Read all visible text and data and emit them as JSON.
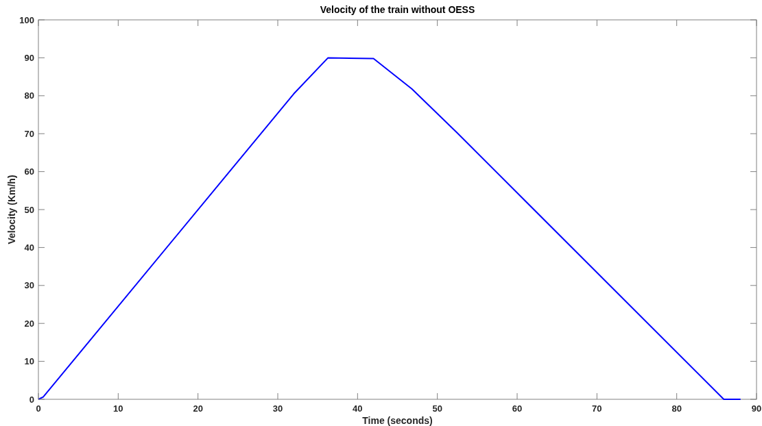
{
  "chart_data": {
    "type": "line",
    "title": "Velocity of the train without OESS",
    "xlabel": "Time (seconds)",
    "ylabel": "Velocity (Km/h)",
    "x": [
      0,
      0.6,
      32,
      36.3,
      42,
      46.8,
      52.4,
      85.9,
      88
    ],
    "series": [
      {
        "color": "#0000ff",
        "values": [
          0,
          0.6,
          80.5,
          90,
          89.8,
          81.8,
          70.4,
          0,
          0
        ]
      }
    ],
    "xlim": [
      0,
      90
    ],
    "xticks": [
      0,
      10,
      20,
      30,
      40,
      50,
      60,
      70,
      80,
      90
    ],
    "ylim": [
      0,
      100
    ],
    "yticks": [
      0,
      10,
      20,
      30,
      40,
      50,
      60,
      70,
      80,
      90,
      100
    ],
    "grid": false,
    "marker": "none",
    "line_style": "solid"
  }
}
